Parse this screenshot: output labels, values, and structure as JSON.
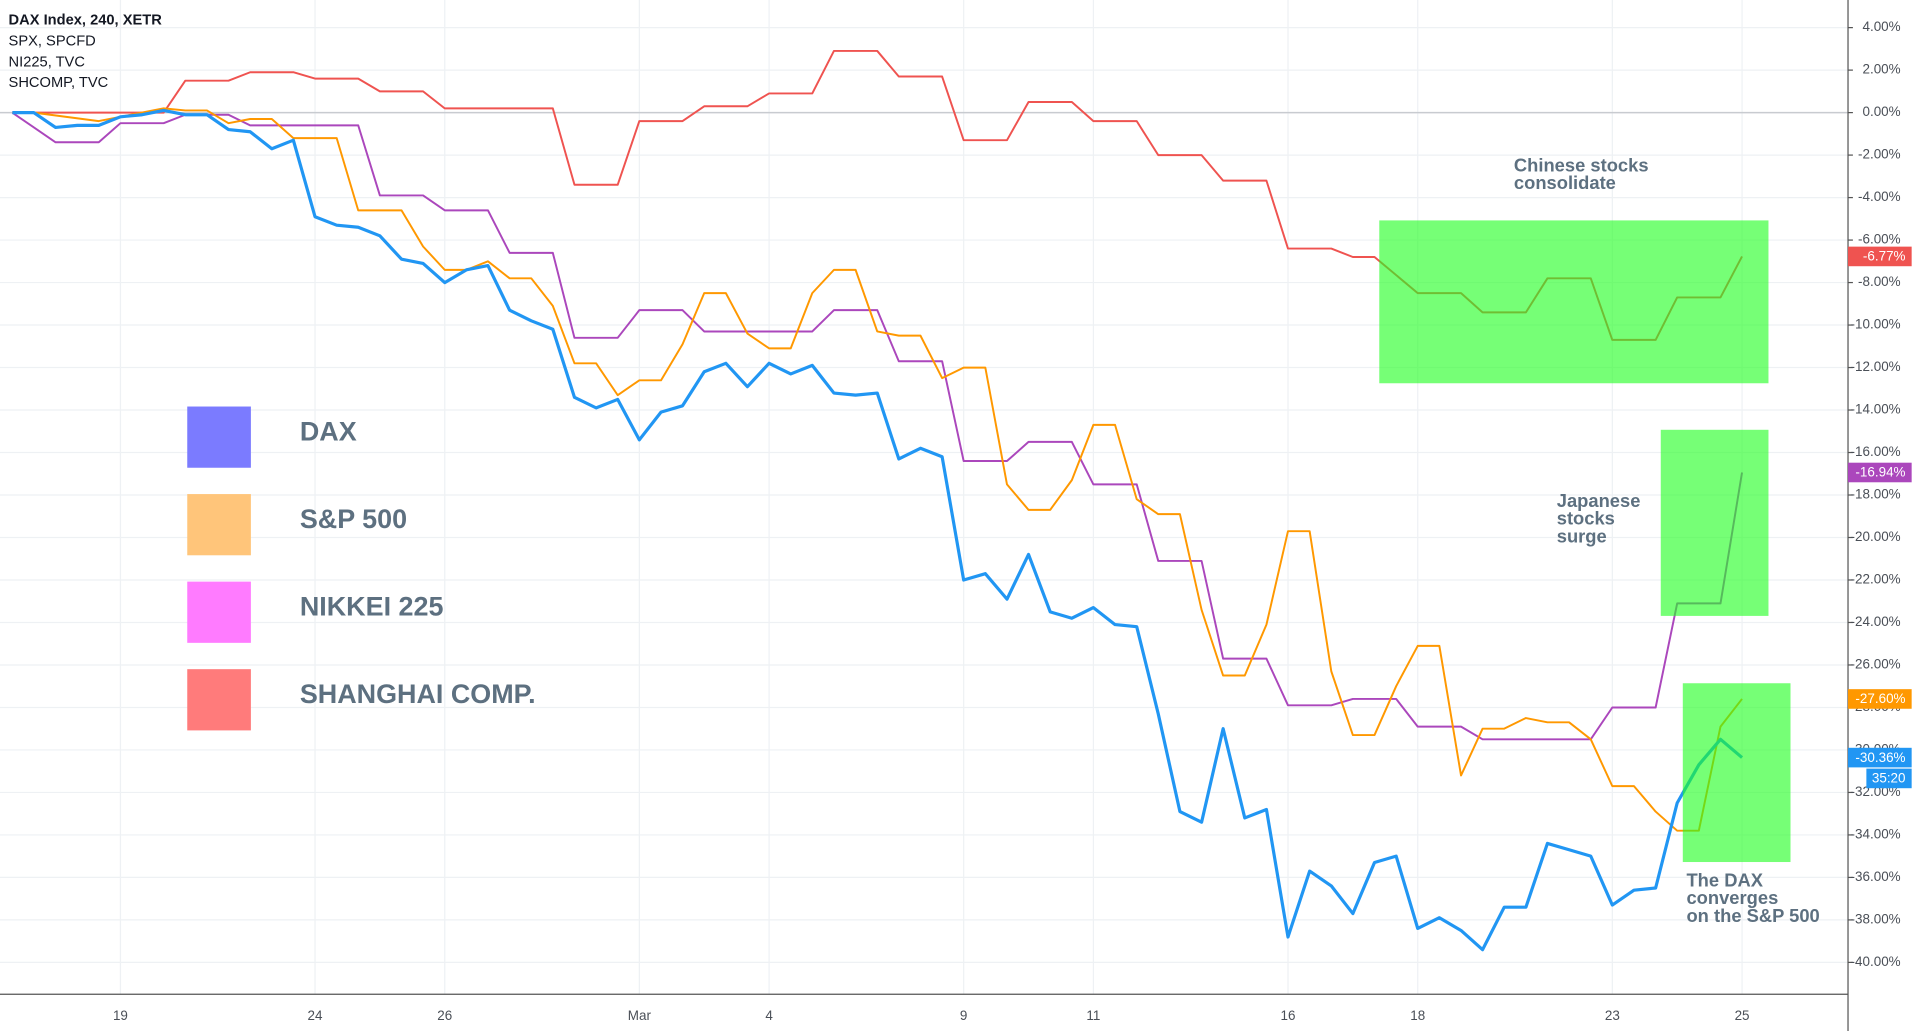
{
  "chart_data": {
    "type": "line",
    "symbols": [
      "DAX Index, 240, XETR",
      "SPX, SPCFD",
      "NI225, TVC",
      "SHCOMP, TVC"
    ],
    "xlim": [
      -0.57,
      84.9
    ],
    "xticks": [
      {
        "value": 5,
        "label": "19"
      },
      {
        "value": 14,
        "label": "24"
      },
      {
        "value": 20,
        "label": "26"
      },
      {
        "value": 29,
        "label": "Mar"
      },
      {
        "value": 35,
        "label": "4"
      },
      {
        "value": 44,
        "label": "9"
      },
      {
        "value": 50,
        "label": "11"
      },
      {
        "value": 59,
        "label": "16"
      },
      {
        "value": 65,
        "label": "18"
      },
      {
        "value": 74,
        "label": "23"
      },
      {
        "value": 80,
        "label": "25"
      }
    ],
    "ylim": [
      -41.5,
      5.3
    ],
    "yticks": [
      {
        "value": 4,
        "label": "4.00%"
      },
      {
        "value": 2,
        "label": "2.00%"
      },
      {
        "value": 0,
        "label": "0.00%"
      },
      {
        "value": -2,
        "label": "-2.00%"
      },
      {
        "value": -4,
        "label": "-4.00%"
      },
      {
        "value": -6,
        "label": "-6.00%"
      },
      {
        "value": -8,
        "label": "-8.00%"
      },
      {
        "value": -10,
        "label": "-10.00%"
      },
      {
        "value": -12,
        "label": "-12.00%"
      },
      {
        "value": -14,
        "label": "-14.00%"
      },
      {
        "value": -16,
        "label": "-16.00%"
      },
      {
        "value": -18,
        "label": "-18.00%"
      },
      {
        "value": -20,
        "label": "-20.00%"
      },
      {
        "value": -22,
        "label": "-22.00%"
      },
      {
        "value": -24,
        "label": "-24.00%"
      },
      {
        "value": -26,
        "label": "-26.00%"
      },
      {
        "value": -28,
        "label": "-28.00%"
      },
      {
        "value": -30,
        "label": "-30.00%"
      },
      {
        "value": -32,
        "label": "-32.00%"
      },
      {
        "value": -34,
        "label": "-34.00%"
      },
      {
        "value": -36,
        "label": "-36.00%"
      },
      {
        "value": -38,
        "label": "-38.00%"
      },
      {
        "value": -40,
        "label": "-40.00%"
      }
    ],
    "grid": true,
    "series": [
      {
        "name": "SHANGHAI COMP.",
        "color": "#ef5350",
        "legend_color": "#ff7b7b",
        "last_value_label": "-6.77%",
        "x": [
          0,
          7,
          8,
          10,
          11,
          13,
          14,
          16,
          17,
          19,
          20,
          22,
          23,
          25,
          26,
          28,
          29,
          31,
          32,
          34,
          35,
          37,
          38,
          40,
          41,
          43,
          44,
          46,
          47,
          49,
          50,
          52,
          53,
          55,
          56,
          58,
          59,
          61,
          62,
          63,
          65,
          67,
          68,
          70,
          71,
          73,
          74,
          76,
          77,
          79,
          80
        ],
        "values": [
          0,
          0,
          1.5,
          1.5,
          1.9,
          1.9,
          1.6,
          1.6,
          1.0,
          1.0,
          0.2,
          0.2,
          0.2,
          0.2,
          -3.4,
          -3.4,
          -0.4,
          -0.4,
          0.3,
          0.3,
          0.9,
          0.9,
          2.9,
          2.9,
          1.7,
          1.7,
          -1.3,
          -1.3,
          0.5,
          0.5,
          -0.4,
          -0.4,
          -2.0,
          -2.0,
          -3.2,
          -3.2,
          -6.4,
          -6.4,
          -6.8,
          -6.8,
          -8.5,
          -8.5,
          -9.4,
          -9.4,
          -7.8,
          -7.8,
          -10.7,
          -10.7,
          -8.7,
          -8.7,
          -6.77
        ]
      },
      {
        "name": "NIKKEI 225",
        "color": "#ab47bc",
        "legend_color": "#ff7bff",
        "last_value_label": "-16.94%",
        "x": [
          0,
          2,
          4,
          5,
          7,
          8,
          10,
          11,
          16,
          17,
          19,
          20,
          22,
          23,
          25,
          26,
          28,
          29,
          31,
          32,
          37,
          38,
          40,
          41,
          43,
          44,
          46,
          47,
          49,
          50,
          52,
          53,
          55,
          56,
          58,
          59,
          61,
          62,
          64,
          65,
          67,
          68,
          73,
          74,
          76,
          77,
          79,
          80
        ],
        "values": [
          0,
          -1.4,
          -1.4,
          -0.5,
          -0.5,
          -0.1,
          -0.1,
          -0.6,
          -0.6,
          -3.9,
          -3.9,
          -4.6,
          -4.6,
          -6.6,
          -6.6,
          -10.6,
          -10.6,
          -9.3,
          -9.3,
          -10.3,
          -10.3,
          -9.3,
          -9.3,
          -11.7,
          -11.7,
          -16.4,
          -16.4,
          -15.5,
          -15.5,
          -17.5,
          -17.5,
          -21.1,
          -21.1,
          -25.7,
          -25.7,
          -27.9,
          -27.9,
          -27.6,
          -27.6,
          -28.9,
          -28.9,
          -29.5,
          -29.5,
          -28.0,
          -28.0,
          -23.1,
          -23.1,
          -16.94
        ]
      },
      {
        "name": "S&P 500",
        "color": "#ff9800",
        "legend_color": "#ffc57a",
        "last_value_label": "-27.60%",
        "x": [
          0,
          1,
          4,
          5,
          7,
          8,
          9,
          10,
          11,
          12,
          13,
          15,
          16,
          18,
          19,
          20,
          21,
          22,
          23,
          24,
          25,
          26,
          27,
          28,
          29,
          30,
          31,
          32,
          33,
          34,
          35,
          36,
          37,
          38,
          39,
          40,
          41,
          42,
          43,
          44,
          45,
          46,
          47,
          48,
          49,
          50,
          51,
          52,
          53,
          54,
          55,
          56,
          57,
          58,
          59,
          60,
          61,
          62,
          63,
          64,
          65,
          66,
          67,
          68,
          69,
          70,
          71,
          72,
          73,
          74,
          75,
          76,
          77,
          78,
          79,
          80
        ],
        "values": [
          0,
          0,
          -0.4,
          -0.2,
          0.2,
          0.1,
          0.1,
          -0.5,
          -0.3,
          -0.3,
          -1.2,
          -1.2,
          -4.6,
          -4.6,
          -6.3,
          -7.4,
          -7.4,
          -7.0,
          -7.8,
          -7.8,
          -9.1,
          -11.8,
          -11.8,
          -13.3,
          -12.6,
          -12.6,
          -10.9,
          -8.5,
          -8.5,
          -10.4,
          -11.1,
          -11.1,
          -8.5,
          -7.4,
          -7.4,
          -10.3,
          -10.5,
          -10.5,
          -12.5,
          -12.0,
          -12.0,
          -17.5,
          -18.7,
          -18.7,
          -17.3,
          -14.7,
          -14.7,
          -18.2,
          -18.9,
          -18.9,
          -23.4,
          -26.5,
          -26.5,
          -24.1,
          -19.7,
          -19.7,
          -26.3,
          -29.3,
          -29.3,
          -27.0,
          -25.1,
          -25.1,
          -31.2,
          -29.0,
          -29.0,
          -28.5,
          -28.7,
          -28.7,
          -29.5,
          -31.7,
          -31.7,
          -32.9,
          -33.8,
          -33.8,
          -28.9,
          -27.6
        ]
      },
      {
        "name": "DAX",
        "color": "#2196f3",
        "legend_color": "#7b7bff",
        "last_value_label": "-30.36%",
        "countdown": "35:20",
        "x": [
          0,
          1,
          2,
          3,
          4,
          5,
          6,
          7,
          8,
          9,
          10,
          11,
          12,
          13,
          14,
          15,
          16,
          17,
          18,
          19,
          20,
          21,
          22,
          23,
          24,
          25,
          26,
          27,
          28,
          29,
          30,
          31,
          32,
          33,
          34,
          35,
          36,
          37,
          38,
          39,
          40,
          41,
          42,
          43,
          44,
          45,
          46,
          47,
          48,
          49,
          50,
          51,
          52,
          53,
          54,
          55,
          56,
          57,
          58,
          59,
          60,
          61,
          62,
          63,
          64,
          65,
          66,
          67,
          68,
          69,
          70,
          71,
          72,
          73,
          74,
          75,
          76,
          77,
          78,
          79,
          80
        ],
        "values": [
          0,
          0,
          -0.7,
          -0.6,
          -0.6,
          -0.2,
          -0.1,
          0.1,
          -0.1,
          -0.1,
          -0.8,
          -0.9,
          -1.7,
          -1.3,
          -4.9,
          -5.3,
          -5.4,
          -5.8,
          -6.9,
          -7.1,
          -8.0,
          -7.4,
          -7.2,
          -9.3,
          -9.8,
          -10.2,
          -13.4,
          -13.9,
          -13.5,
          -15.4,
          -14.1,
          -13.8,
          -12.2,
          -11.8,
          -12.9,
          -11.8,
          -12.3,
          -11.9,
          -13.2,
          -13.3,
          -13.2,
          -16.3,
          -15.8,
          -16.2,
          -22.0,
          -21.7,
          -22.9,
          -20.8,
          -23.5,
          -23.8,
          -23.3,
          -24.1,
          -24.2,
          -28.3,
          -32.9,
          -33.4,
          -29.0,
          -33.2,
          -32.8,
          -38.8,
          -35.7,
          -36.4,
          -37.7,
          -35.3,
          -35.0,
          -38.4,
          -37.9,
          -38.5,
          -39.4,
          -37.4,
          -37.4,
          -34.4,
          -34.7,
          -35.0,
          -37.3,
          -36.6,
          -36.5,
          -32.5,
          -30.7,
          -29.5,
          -30.36
        ]
      }
    ],
    "annotations": [
      {
        "lines": [
          "Chinese stocks",
          "consolidate"
        ]
      },
      {
        "lines": [
          "Japanese",
          "stocks",
          "surge"
        ]
      },
      {
        "lines": [
          "The DAX",
          "converges",
          "on the S&P 500"
        ]
      }
    ]
  }
}
